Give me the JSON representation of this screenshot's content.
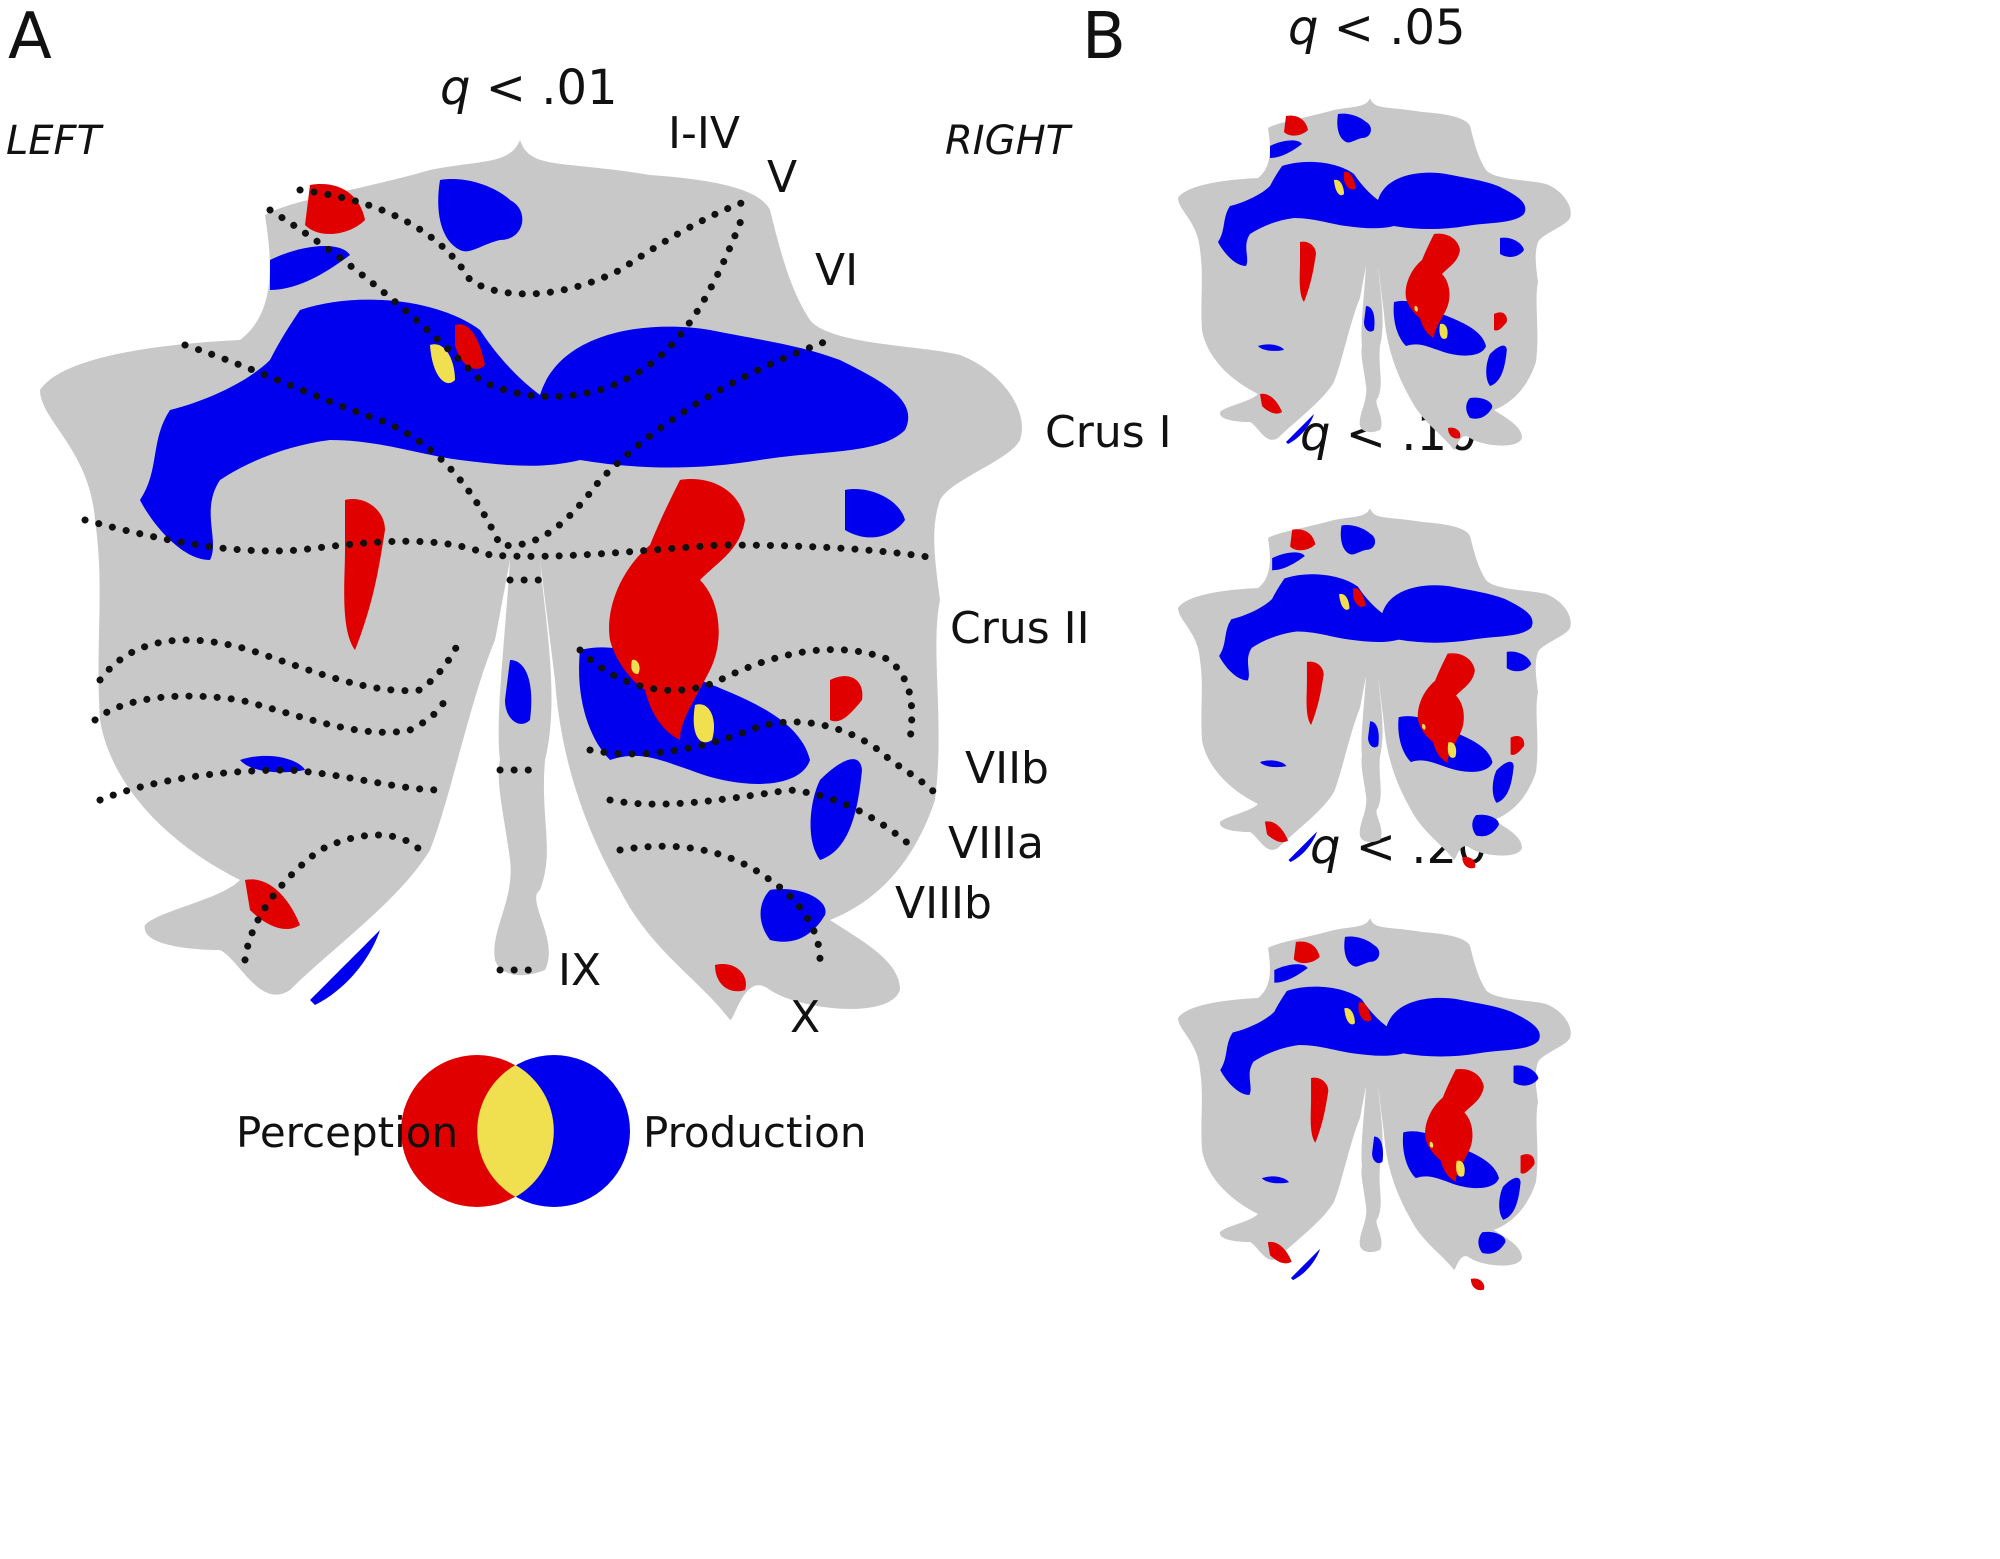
{
  "panel_a": {
    "letter": "A",
    "threshold_prefix": "q",
    "threshold_suffix": " < .01",
    "left_label": "LEFT",
    "right_label": "RIGHT",
    "lobules": {
      "l1_4": "I-IV",
      "l5": "V",
      "l6": "VI",
      "crus1": "Crus I",
      "crus2": "Crus II",
      "l7b": "VIIb",
      "l8a": "VIIIa",
      "l8b": "VIIIb",
      "l9": "IX",
      "l10": "X"
    },
    "legend": {
      "perception": "Perception",
      "production": "Production"
    }
  },
  "panel_b": {
    "letter": "B",
    "thresholds": [
      {
        "prefix": "q",
        "suffix": " < .05"
      },
      {
        "prefix": "q",
        "suffix": " < .10"
      },
      {
        "prefix": "q",
        "suffix": " < .20"
      }
    ]
  },
  "colors": {
    "perception": "#e00000",
    "production": "#0000ee",
    "overlap": "#f0e050",
    "flatmap": "#c8c8c8",
    "boundary": "#111111"
  }
}
